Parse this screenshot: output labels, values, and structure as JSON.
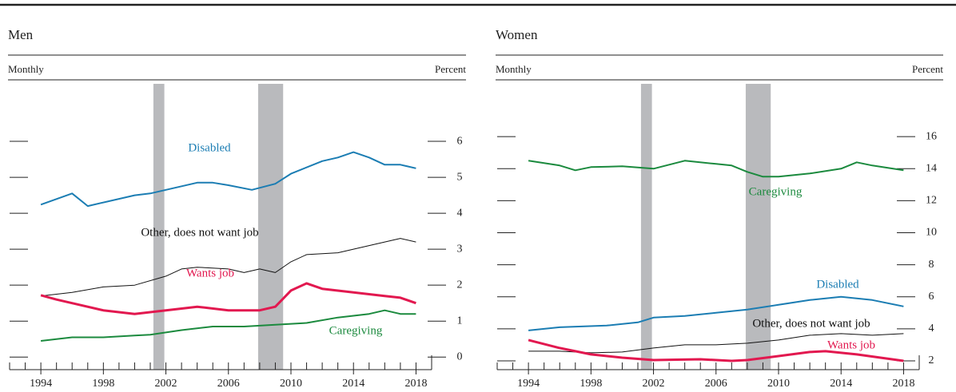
{
  "chart_data": [
    {
      "type": "line",
      "title": "Men",
      "y_label_left": "Monthly",
      "y_label_right": "Percent",
      "xlim": [
        1992,
        2019
      ],
      "xticks": [
        1994,
        1998,
        2002,
        2006,
        2010,
        2014,
        2018
      ],
      "xminor_ticks": [
        1992,
        1993,
        1994,
        1995,
        1996,
        1997,
        1998,
        1999,
        2000,
        2001,
        2002,
        2003,
        2004,
        2005,
        2006,
        2007,
        2008,
        2009,
        2010,
        2011,
        2012,
        2013,
        2014,
        2015,
        2016,
        2017,
        2018,
        2019
      ],
      "ylim": [
        -0.35,
        7.6
      ],
      "yticks": [
        0,
        1,
        2,
        3,
        4,
        5,
        6
      ],
      "recessions": [
        [
          2001.2,
          2001.9
        ],
        [
          2007.9,
          2009.5
        ]
      ],
      "recession_color": "#b9babd",
      "series": [
        {
          "name": "Disabled",
          "color": "#1b7db3",
          "x": [
            1994,
            1996,
            1997,
            2000,
            2001,
            2002,
            2004,
            2005,
            2006,
            2007.5,
            2009,
            2010,
            2012,
            2013,
            2014,
            2015,
            2016,
            2017,
            2018
          ],
          "values": [
            4.24,
            4.55,
            4.2,
            4.5,
            4.55,
            4.65,
            4.85,
            4.85,
            4.78,
            4.65,
            4.82,
            5.1,
            5.45,
            5.55,
            5.7,
            5.55,
            5.35,
            5.35,
            5.25
          ]
        },
        {
          "name": "Other, does not want job",
          "color": "#111111",
          "x": [
            1994,
            1996,
            1998,
            2000,
            2002,
            2003,
            2004,
            2006,
            2007,
            2008,
            2009,
            2010,
            2011,
            2013,
            2014,
            2016,
            2017,
            2018
          ],
          "values": [
            1.7,
            1.8,
            1.95,
            2.0,
            2.25,
            2.45,
            2.5,
            2.45,
            2.35,
            2.45,
            2.35,
            2.65,
            2.85,
            2.9,
            3.0,
            3.2,
            3.3,
            3.2
          ]
        },
        {
          "name": "Wants job",
          "color": "#e2184f",
          "x": [
            1994,
            1995,
            1996,
            1998,
            2000,
            2002,
            2004,
            2006,
            2008,
            2009,
            2010,
            2011,
            2012,
            2014,
            2016,
            2017,
            2018
          ],
          "values": [
            1.72,
            1.6,
            1.5,
            1.3,
            1.2,
            1.3,
            1.4,
            1.3,
            1.3,
            1.4,
            1.85,
            2.05,
            1.9,
            1.8,
            1.7,
            1.65,
            1.5
          ]
        },
        {
          "name": "Caregiving",
          "color": "#1b8a3e",
          "x": [
            1994,
            1996,
            1998,
            2000,
            2001,
            2003,
            2005,
            2007,
            2009,
            2011,
            2013,
            2015,
            2016,
            2017,
            2018
          ],
          "values": [
            0.45,
            0.55,
            0.55,
            0.6,
            0.62,
            0.75,
            0.85,
            0.85,
            0.9,
            0.95,
            1.1,
            1.2,
            1.3,
            1.2,
            1.2
          ]
        }
      ]
    },
    {
      "type": "line",
      "title": "Women",
      "y_label_left": "Monthly",
      "y_label_right": "Percent",
      "xlim": [
        1992,
        2019
      ],
      "xticks": [
        1994,
        1998,
        2002,
        2006,
        2010,
        2014,
        2018
      ],
      "xminor_ticks": [
        1992,
        1993,
        1994,
        1995,
        1996,
        1997,
        1998,
        1999,
        2000,
        2001,
        2002,
        2003,
        2004,
        2005,
        2006,
        2007,
        2008,
        2009,
        2010,
        2011,
        2012,
        2013,
        2014,
        2015,
        2016,
        2017,
        2018,
        2019
      ],
      "ylim": [
        1.45,
        19.3
      ],
      "yticks": [
        2,
        4,
        6,
        8,
        10,
        12,
        14,
        16
      ],
      "recessions": [
        [
          2001.2,
          2001.9
        ],
        [
          2007.9,
          2009.5
        ]
      ],
      "recession_color": "#b9babd",
      "series": [
        {
          "name": "Caregiving",
          "color": "#1b8a3e",
          "x": [
            1994,
            1996,
            1997,
            1998,
            2000,
            2002,
            2004,
            2006,
            2007,
            2008,
            2009,
            2010,
            2012,
            2014,
            2015,
            2016,
            2018
          ],
          "values": [
            14.5,
            14.2,
            13.9,
            14.1,
            14.15,
            14.0,
            14.5,
            14.3,
            14.2,
            13.8,
            13.5,
            13.5,
            13.7,
            14.0,
            14.4,
            14.2,
            13.9
          ]
        },
        {
          "name": "Disabled",
          "color": "#1b7db3",
          "x": [
            1994,
            1996,
            1999,
            2001,
            2002,
            2004,
            2006,
            2008,
            2010,
            2012,
            2014,
            2016,
            2018
          ],
          "values": [
            3.9,
            4.1,
            4.2,
            4.4,
            4.7,
            4.8,
            5.0,
            5.2,
            5.5,
            5.8,
            6.0,
            5.8,
            5.4
          ]
        },
        {
          "name": "Other, does not want job",
          "color": "#111111",
          "x": [
            1994,
            1996,
            1998,
            2000,
            2002,
            2004,
            2006,
            2008,
            2010,
            2012,
            2014,
            2016,
            2018
          ],
          "values": [
            2.6,
            2.6,
            2.5,
            2.55,
            2.8,
            3.0,
            3.0,
            3.1,
            3.3,
            3.6,
            3.7,
            3.6,
            3.7
          ]
        },
        {
          "name": "Wants job",
          "color": "#e2184f",
          "x": [
            1994,
            1996,
            1998,
            2000,
            2002,
            2005,
            2007,
            2008,
            2010,
            2012,
            2013,
            2015,
            2018
          ],
          "values": [
            3.3,
            2.8,
            2.4,
            2.2,
            2.05,
            2.1,
            2.0,
            2.05,
            2.3,
            2.55,
            2.6,
            2.4,
            2.0
          ]
        }
      ]
    }
  ]
}
